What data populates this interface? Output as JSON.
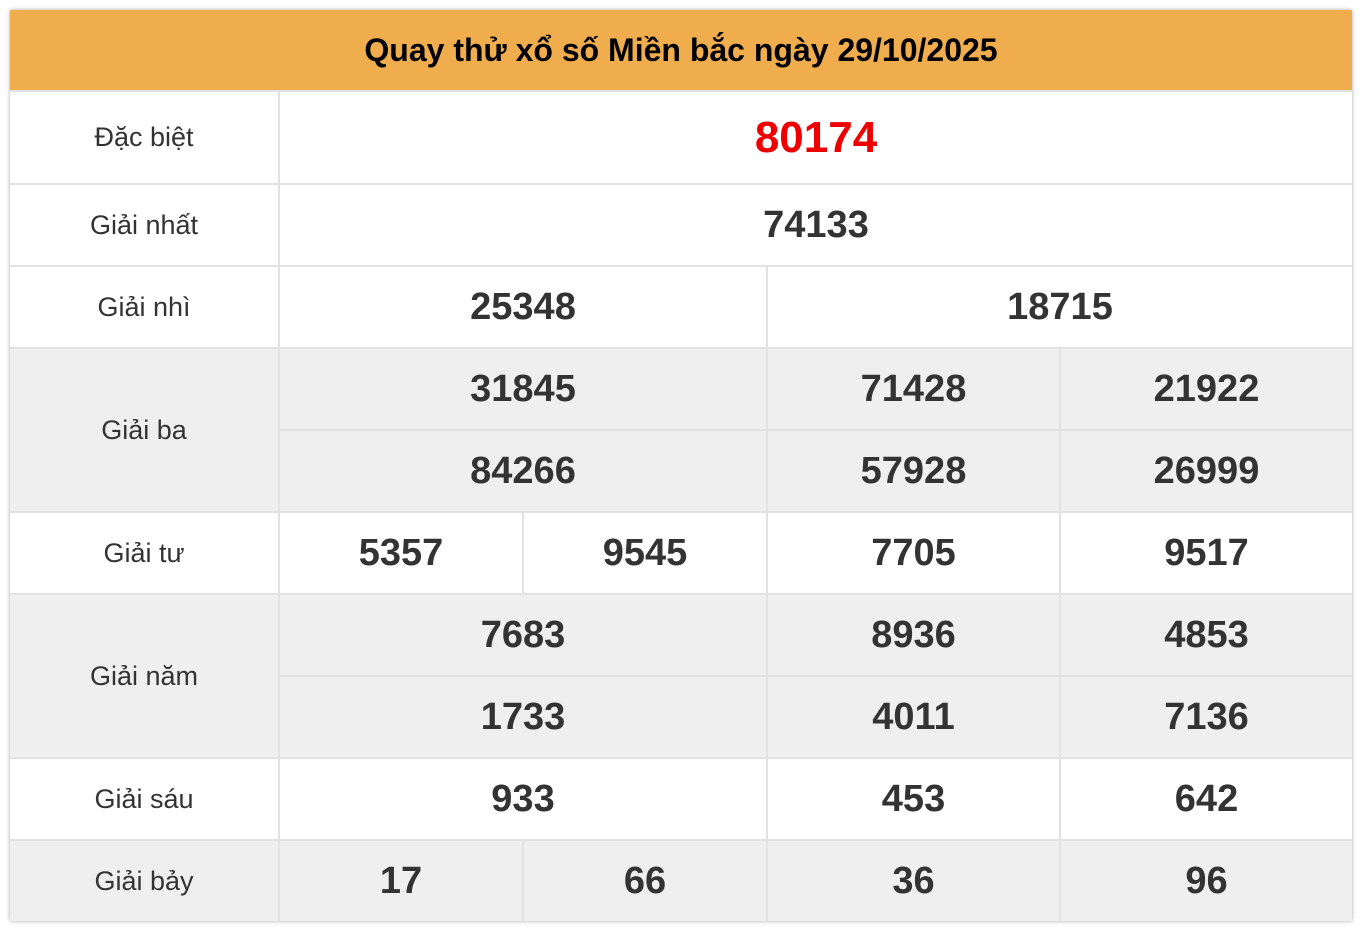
{
  "title": "Quay thử xổ số Miền bắc ngày 29/10/2025",
  "prizes": {
    "special": {
      "label": "Đặc biệt",
      "values": [
        "80174"
      ]
    },
    "first": {
      "label": "Giải nhất",
      "values": [
        "74133"
      ]
    },
    "second": {
      "label": "Giải nhì",
      "values": [
        "25348",
        "18715"
      ]
    },
    "third": {
      "label": "Giải ba",
      "values": [
        "31845",
        "71428",
        "21922",
        "84266",
        "57928",
        "26999"
      ]
    },
    "fourth": {
      "label": "Giải tư",
      "values": [
        "5357",
        "9545",
        "7705",
        "9517"
      ]
    },
    "fifth": {
      "label": "Giải năm",
      "values": [
        "7683",
        "8936",
        "4853",
        "1733",
        "4011",
        "7136"
      ]
    },
    "sixth": {
      "label": "Giải sáu",
      "values": [
        "933",
        "453",
        "642"
      ]
    },
    "seventh": {
      "label": "Giải bảy",
      "values": [
        "17",
        "66",
        "36",
        "96"
      ]
    }
  },
  "colors": {
    "header": "#f0ad4e",
    "special": "#ee0000",
    "alt_row": "#efefef"
  }
}
